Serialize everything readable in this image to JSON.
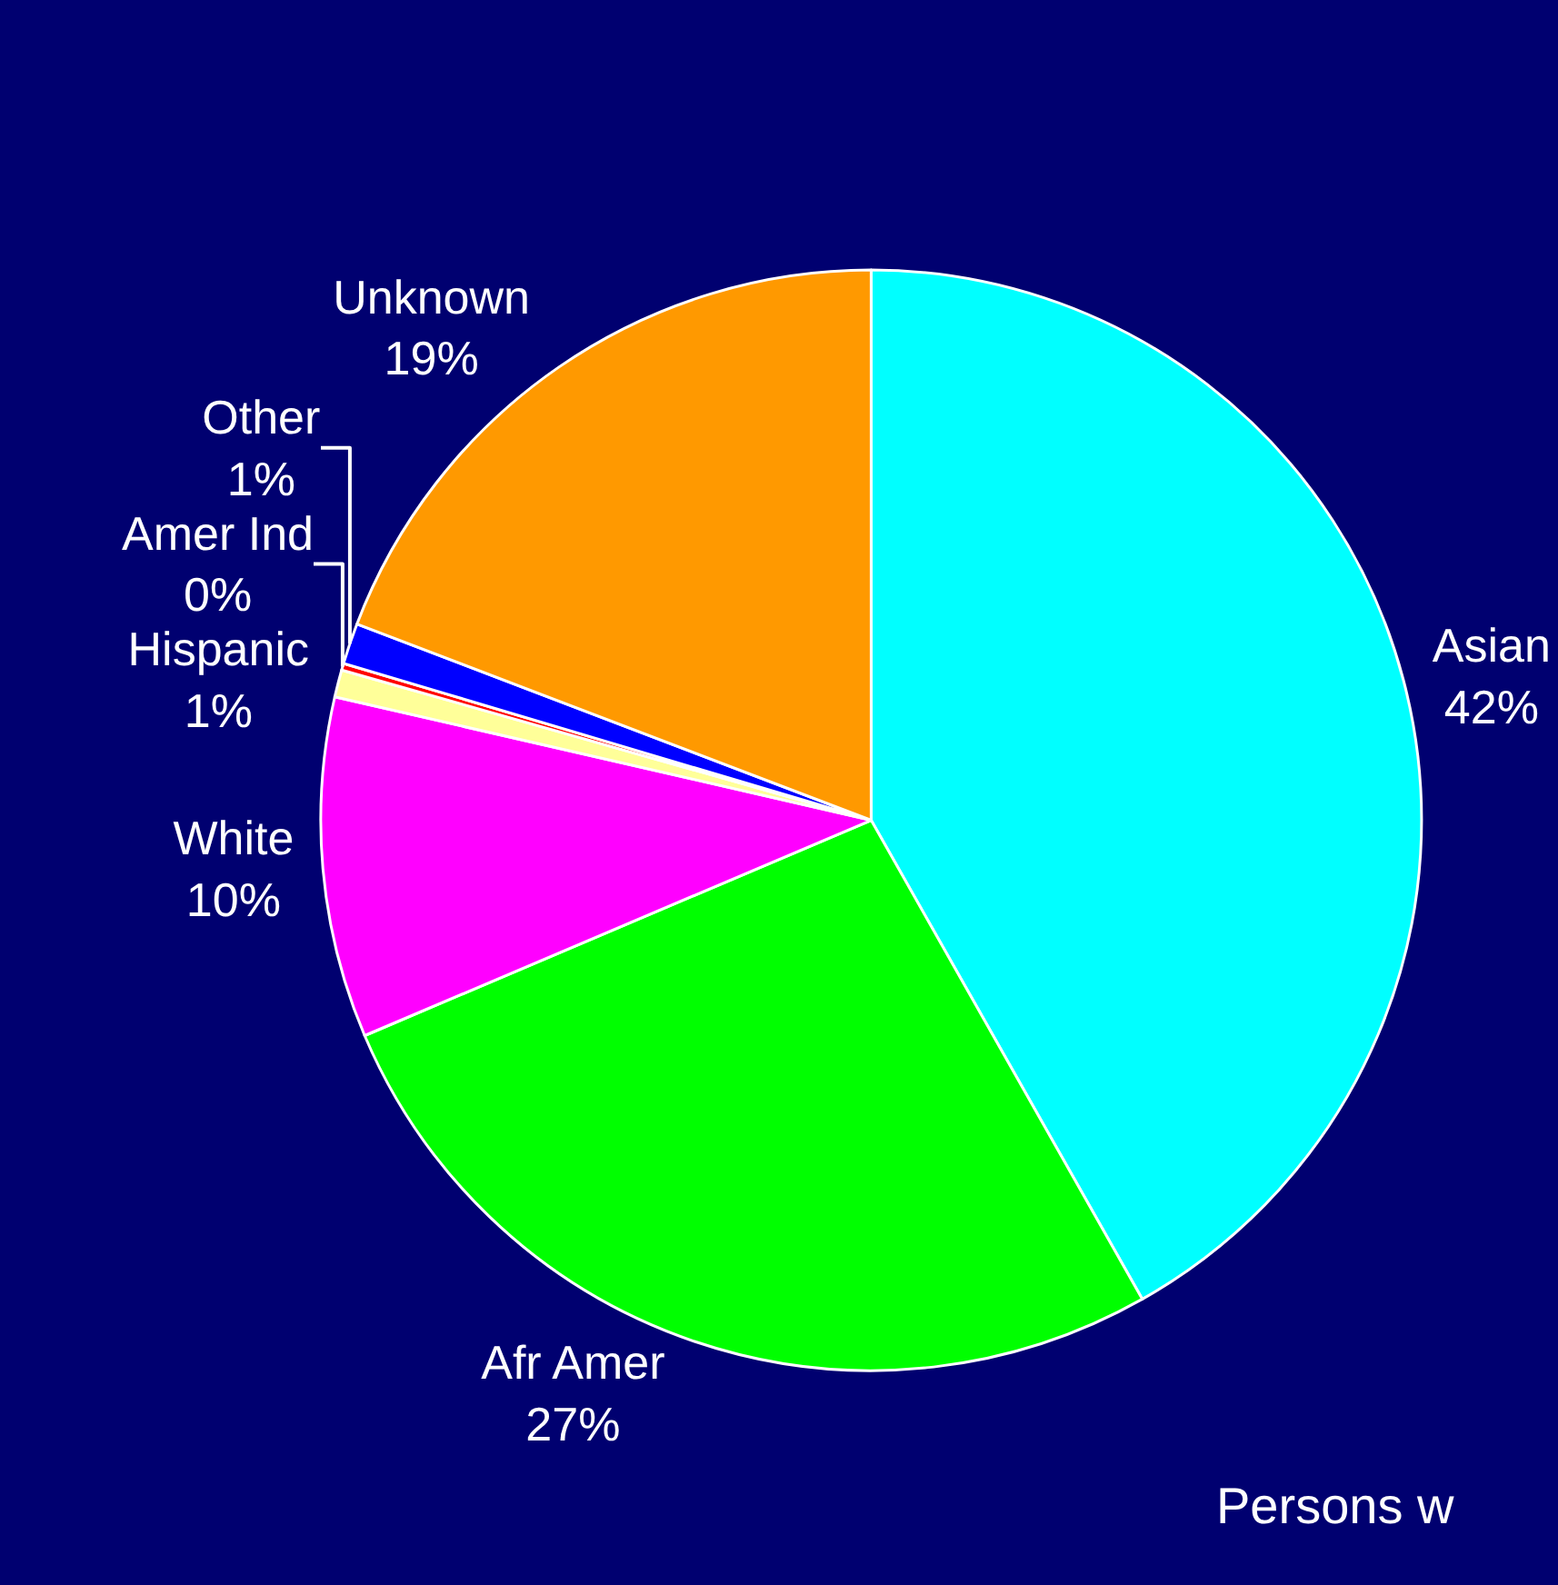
{
  "chart_data": {
    "type": "pie",
    "categories": [
      "Asian",
      "Afr Amer",
      "White",
      "Hispanic",
      "Amer Ind",
      "Other",
      "Unknown"
    ],
    "values": [
      41.8,
      26.8,
      10,
      0.8,
      0.2,
      1.2,
      19.2
    ],
    "value_labels": [
      "42%",
      "27%",
      "10%",
      "1%",
      "0%",
      "1%",
      "19%"
    ],
    "colors": [
      "#00ffff",
      "#00ff00",
      "#ff00ff",
      "#ffff99",
      "#ff0000",
      "#0000ff",
      "#ff9900"
    ],
    "annotations": [
      "Persons w"
    ],
    "legend": false
  }
}
